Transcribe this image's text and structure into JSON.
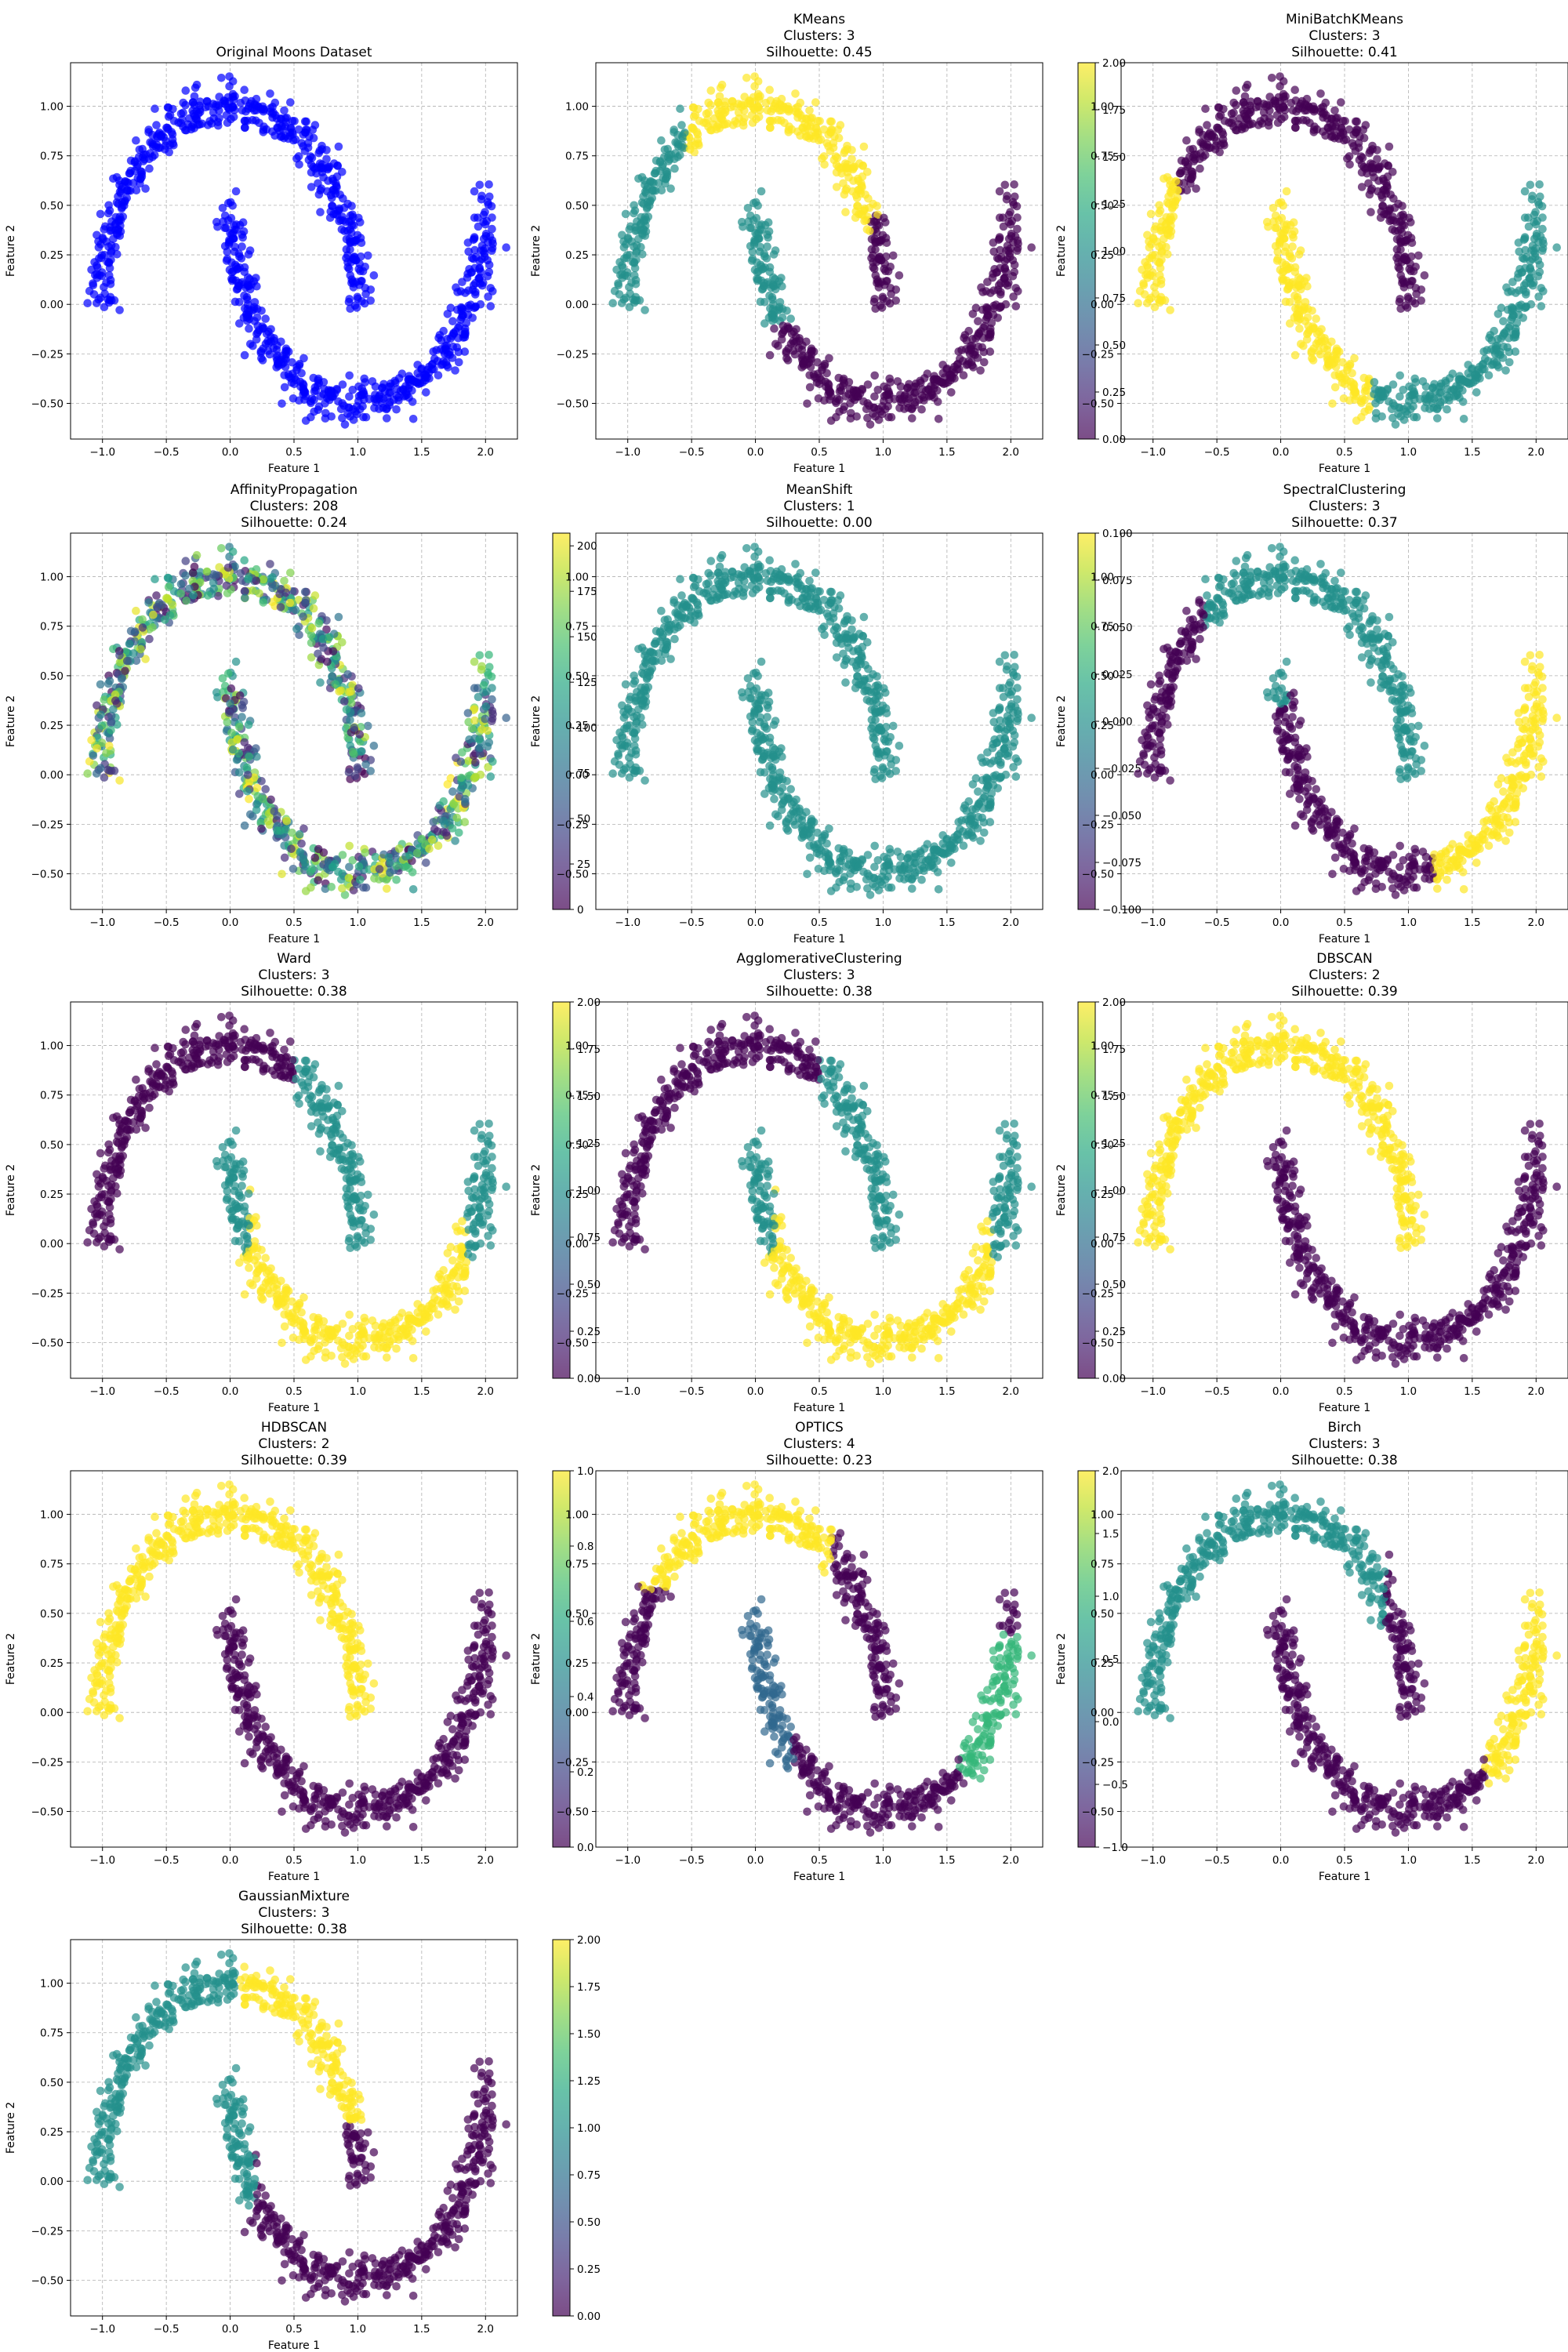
{
  "figure": {
    "xlabel": "Feature 1",
    "ylabel": "Feature 2",
    "colors": {
      "original_points": "#0000ff",
      "grid": "#b0b0b0"
    },
    "colormap": "viridis",
    "shared_axes": {
      "xticks": [
        "−1.0",
        "−0.5",
        "0.0",
        "0.5",
        "1.0",
        "1.5",
        "2.0"
      ],
      "xtick_values": [
        -1.0,
        -0.5,
        0.0,
        0.5,
        1.0,
        1.5,
        2.0
      ],
      "yticks": [
        "−0.50",
        "−0.25",
        "0.00",
        "0.25",
        "0.50",
        "0.75",
        "1.00"
      ],
      "ytick_values": [
        -0.5,
        -0.25,
        0.0,
        0.25,
        0.5,
        0.75,
        1.0
      ],
      "xlim": [
        -1.25,
        2.25
      ],
      "ylim": [
        -0.68,
        1.22
      ]
    }
  },
  "chart_data": [
    {
      "type": "scatter",
      "title": "Original Moons Dataset",
      "clusters_text": "",
      "silhouette_text": "",
      "colorbar": null
    },
    {
      "type": "scatter",
      "title": "KMeans",
      "clusters_text": "Clusters: 3",
      "silhouette_text": "Silhouette: 0.45",
      "assignment": "kmeans3",
      "labels": [
        0,
        1,
        2
      ],
      "colorbar": {
        "ticks": [
          "0.00",
          "0.25",
          "0.50",
          "0.75",
          "1.00",
          "1.25",
          "1.50",
          "1.75",
          "2.00"
        ],
        "tick_values": [
          0,
          0.25,
          0.5,
          0.75,
          1,
          1.25,
          1.5,
          1.75,
          2
        ],
        "range": [
          0,
          2
        ]
      }
    },
    {
      "type": "scatter",
      "title": "MiniBatchKMeans",
      "clusters_text": "Clusters: 3",
      "silhouette_text": "Silhouette: 0.41",
      "assignment": "minibatch3",
      "labels": [
        0,
        1,
        2
      ],
      "colorbar": {
        "ticks": [
          "0.00",
          "0.25",
          "0.50",
          "0.75",
          "1.00",
          "1.25",
          "1.50",
          "1.75",
          "2.00"
        ],
        "tick_values": [
          0,
          0.25,
          0.5,
          0.75,
          1,
          1.25,
          1.5,
          1.75,
          2
        ],
        "range": [
          0,
          2
        ]
      }
    },
    {
      "type": "scatter",
      "title": "AffinityPropagation",
      "clusters_text": "Clusters: 208",
      "silhouette_text": "Silhouette: 0.24",
      "assignment": "affinity",
      "labels": [
        0,
        207
      ],
      "colorbar": {
        "ticks": [
          "0",
          "25",
          "50",
          "75",
          "100",
          "125",
          "150",
          "175",
          "200"
        ],
        "tick_values": [
          0,
          25,
          50,
          75,
          100,
          125,
          150,
          175,
          200
        ],
        "range": [
          0,
          207
        ]
      }
    },
    {
      "type": "scatter",
      "title": "MeanShift",
      "clusters_text": "Clusters: 1",
      "silhouette_text": "Silhouette: 0.00",
      "assignment": "single",
      "labels": [
        0
      ],
      "colorbar": {
        "ticks": [
          "−0.100",
          "−0.075",
          "−0.050",
          "−0.025",
          "0.000",
          "0.025",
          "0.050",
          "0.075",
          "0.100"
        ],
        "tick_values": [
          -0.1,
          -0.075,
          -0.05,
          -0.025,
          0,
          0.025,
          0.05,
          0.075,
          0.1
        ],
        "range": [
          -0.1,
          0.1
        ]
      }
    },
    {
      "type": "scatter",
      "title": "SpectralClustering",
      "clusters_text": "Clusters: 3",
      "silhouette_text": "Silhouette: 0.37",
      "assignment": "spectral3",
      "labels": [
        0,
        1,
        2
      ],
      "colorbar": {
        "ticks": [
          "0.00",
          "0.25",
          "0.50",
          "0.75",
          "1.00",
          "1.25",
          "1.50",
          "1.75",
          "2.00"
        ],
        "tick_values": [
          0,
          0.25,
          0.5,
          0.75,
          1,
          1.25,
          1.5,
          1.75,
          2
        ],
        "range": [
          0,
          2
        ]
      }
    },
    {
      "type": "scatter",
      "title": "Ward",
      "clusters_text": "Clusters: 3",
      "silhouette_text": "Silhouette: 0.38",
      "assignment": "ward3",
      "labels": [
        0,
        1,
        2
      ],
      "colorbar": {
        "ticks": [
          "0.00",
          "0.25",
          "0.50",
          "0.75",
          "1.00",
          "1.25",
          "1.50",
          "1.75",
          "2.00"
        ],
        "tick_values": [
          0,
          0.25,
          0.5,
          0.75,
          1,
          1.25,
          1.5,
          1.75,
          2
        ],
        "range": [
          0,
          2
        ]
      }
    },
    {
      "type": "scatter",
      "title": "AgglomerativeClustering",
      "clusters_text": "Clusters: 3",
      "silhouette_text": "Silhouette: 0.38",
      "assignment": "ward3",
      "labels": [
        0,
        1,
        2
      ],
      "colorbar": {
        "ticks": [
          "0.00",
          "0.25",
          "0.50",
          "0.75",
          "1.00",
          "1.25",
          "1.50",
          "1.75",
          "2.00"
        ],
        "tick_values": [
          0,
          0.25,
          0.5,
          0.75,
          1,
          1.25,
          1.5,
          1.75,
          2
        ],
        "range": [
          0,
          2
        ]
      }
    },
    {
      "type": "scatter",
      "title": "DBSCAN",
      "clusters_text": "Clusters: 2",
      "silhouette_text": "Silhouette: 0.39",
      "assignment": "moons2",
      "labels": [
        0,
        1
      ],
      "colorbar": {
        "ticks": [
          "0.0",
          "0.2",
          "0.4",
          "0.6",
          "0.8",
          "1.0"
        ],
        "tick_values": [
          0,
          0.2,
          0.4,
          0.6,
          0.8,
          1
        ],
        "range": [
          0,
          1
        ]
      }
    },
    {
      "type": "scatter",
      "title": "HDBSCAN",
      "clusters_text": "Clusters: 2",
      "silhouette_text": "Silhouette: 0.39",
      "assignment": "moons2",
      "labels": [
        0,
        1
      ],
      "colorbar": {
        "ticks": [
          "0.0",
          "0.2",
          "0.4",
          "0.6",
          "0.8",
          "1.0"
        ],
        "tick_values": [
          0,
          0.2,
          0.4,
          0.6,
          0.8,
          1
        ],
        "range": [
          0,
          1
        ]
      }
    },
    {
      "type": "scatter",
      "title": "OPTICS",
      "clusters_text": "Clusters: 4",
      "silhouette_text": "Silhouette: 0.23",
      "assignment": "optics",
      "labels": [
        -1,
        0,
        1,
        2
      ],
      "colorbar": {
        "ticks": [
          "−1.0",
          "−0.5",
          "0.0",
          "0.5",
          "1.0",
          "1.5",
          "2.0"
        ],
        "tick_values": [
          -1,
          -0.5,
          0,
          0.5,
          1,
          1.5,
          2
        ],
        "range": [
          -1,
          2
        ]
      }
    },
    {
      "type": "scatter",
      "title": "Birch",
      "clusters_text": "Clusters: 3",
      "silhouette_text": "Silhouette: 0.38",
      "assignment": "birch3",
      "labels": [
        0,
        1,
        2
      ],
      "colorbar": {
        "ticks": [
          "0.00",
          "0.25",
          "0.50",
          "0.75",
          "1.00",
          "1.25",
          "1.50",
          "1.75",
          "2.00"
        ],
        "tick_values": [
          0,
          0.25,
          0.5,
          0.75,
          1,
          1.25,
          1.5,
          1.75,
          2
        ],
        "range": [
          0,
          2
        ]
      }
    },
    {
      "type": "scatter",
      "title": "GaussianMixture",
      "clusters_text": "Clusters: 3",
      "silhouette_text": "Silhouette: 0.38",
      "assignment": "gmm3",
      "labels": [
        0,
        1,
        2
      ],
      "colorbar": {
        "ticks": [
          "0.00",
          "0.25",
          "0.50",
          "0.75",
          "1.00",
          "1.25",
          "1.50",
          "1.75",
          "2.00"
        ],
        "tick_values": [
          0,
          0.25,
          0.5,
          0.75,
          1,
          1.25,
          1.5,
          1.75,
          2
        ],
        "range": [
          0,
          2
        ]
      }
    }
  ]
}
